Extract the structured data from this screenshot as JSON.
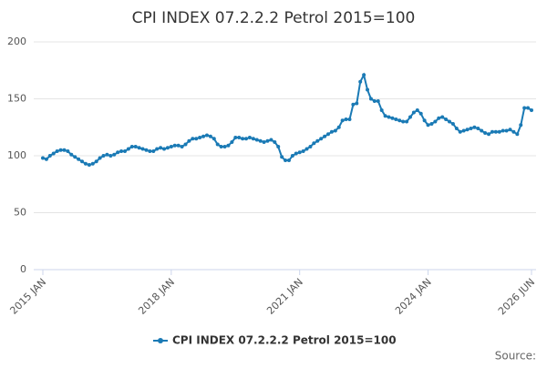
{
  "chart_data": {
    "type": "line",
    "title": "CPI INDEX 07.2.2.2 Petrol 2015=100",
    "categories": [
      "2015 JAN",
      null,
      null,
      null,
      null,
      null,
      null,
      null,
      null,
      null,
      null,
      null,
      null,
      null,
      null,
      null,
      null,
      null,
      null,
      null,
      null,
      null,
      null,
      null,
      null,
      null,
      null,
      null,
      null,
      null,
      null,
      null,
      null,
      null,
      null,
      null,
      "2018 JAN",
      null,
      null,
      null,
      null,
      null,
      null,
      null,
      null,
      null,
      null,
      null,
      null,
      null,
      null,
      null,
      null,
      null,
      null,
      null,
      null,
      null,
      null,
      null,
      null,
      null,
      null,
      null,
      null,
      null,
      null,
      null,
      null,
      null,
      null,
      null,
      "2021 JAN",
      null,
      null,
      null,
      null,
      null,
      null,
      null,
      null,
      null,
      null,
      null,
      null,
      null,
      null,
      null,
      null,
      null,
      null,
      null,
      null,
      null,
      null,
      null,
      null,
      null,
      null,
      null,
      null,
      null,
      null,
      null,
      null,
      null,
      null,
      null,
      "2024 JAN",
      null,
      null,
      null,
      null,
      null,
      null,
      null,
      null,
      null,
      null,
      null,
      null,
      null,
      null,
      null,
      null,
      null,
      null,
      null,
      null,
      null,
      null,
      null,
      null,
      null,
      null,
      null,
      null,
      "2026 JUN"
    ],
    "series": [
      {
        "name": "CPI INDEX 07.2.2.2 Petrol 2015=100",
        "color": "#1a7ab5",
        "values": [
          98,
          97,
          100,
          102,
          104,
          105,
          105,
          104,
          101,
          99,
          97,
          95,
          93,
          92,
          93,
          95,
          98,
          100,
          101,
          100,
          101,
          103,
          104,
          104,
          106,
          108,
          108,
          107,
          106,
          105,
          104,
          104,
          106,
          107,
          106,
          107,
          108,
          109,
          109,
          108,
          110,
          113,
          115,
          115,
          116,
          117,
          118,
          117,
          115,
          110,
          108,
          108,
          109,
          112,
          116,
          116,
          115,
          115,
          116,
          115,
          114,
          113,
          112,
          113,
          114,
          112,
          108,
          99,
          96,
          96,
          100,
          102,
          103,
          104,
          106,
          108,
          111,
          113,
          115,
          117,
          119,
          121,
          122,
          125,
          131,
          132,
          132,
          145,
          146,
          165,
          171,
          158,
          150,
          148,
          148,
          140,
          135,
          134,
          133,
          132,
          131,
          130,
          130,
          134,
          138,
          140,
          137,
          131,
          127,
          128,
          130,
          133,
          134,
          132,
          130,
          128,
          124,
          121,
          122,
          123,
          124,
          125,
          124,
          122,
          120,
          119,
          121,
          121,
          121,
          122,
          122,
          123,
          121,
          119,
          127,
          142,
          142,
          140
        ]
      }
    ],
    "ylim": [
      0,
      200
    ],
    "yticks": [
      0,
      50,
      100,
      150,
      200
    ],
    "grid": true,
    "source": "Source:"
  }
}
